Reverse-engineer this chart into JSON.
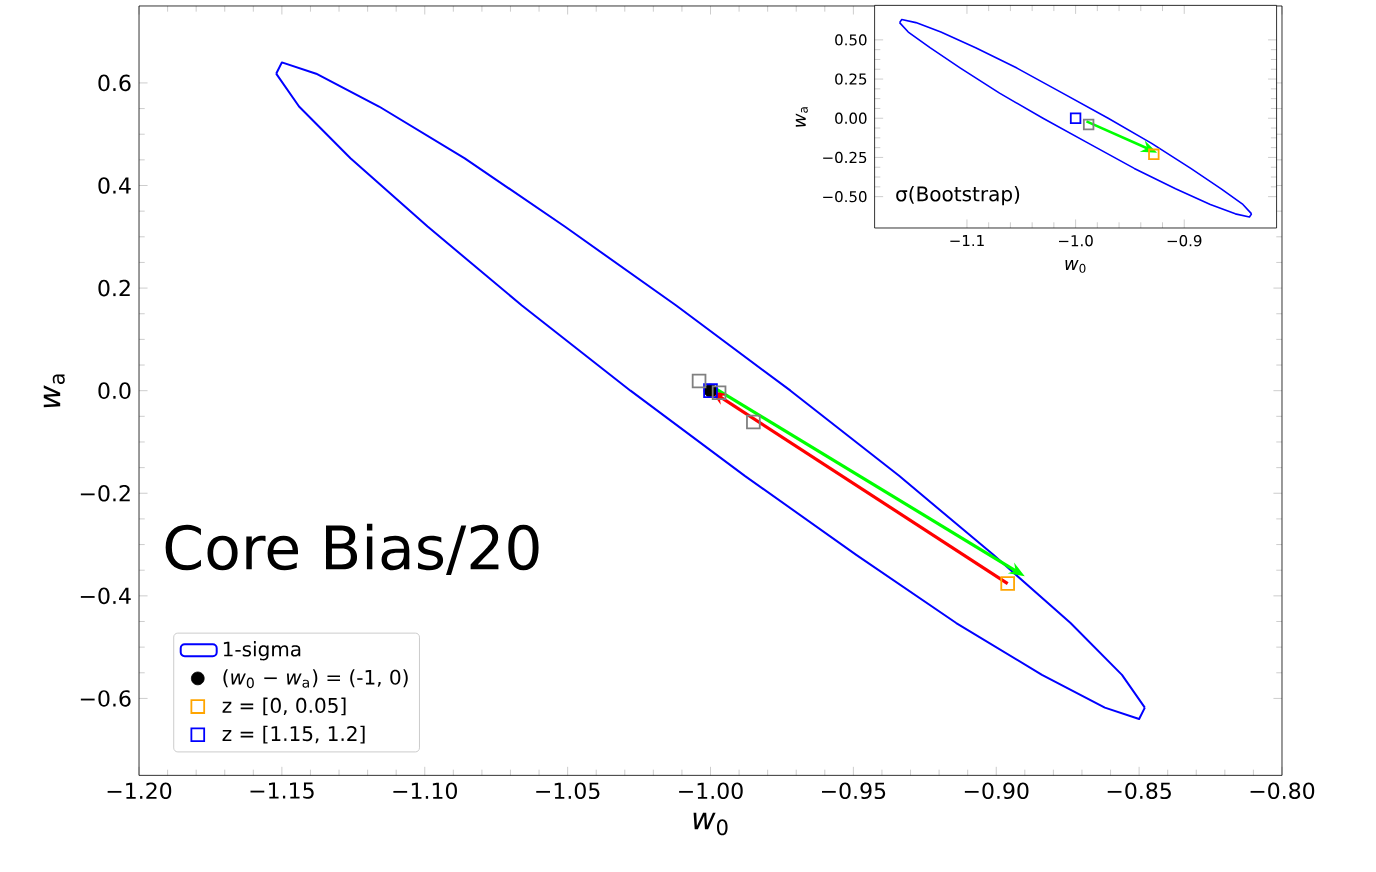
{
  "chart_data": [
    {
      "type": "scatter",
      "xlabel": "*w*$_{0}$",
      "ylabel": "*w*$_{a}$",
      "xlim": [
        -1.2,
        -0.8
      ],
      "ylim": [
        -0.75,
        0.75
      ],
      "xticks": [
        {
          "value": -1.2,
          "label": "−1.20"
        },
        {
          "value": -1.15,
          "label": "−1.15"
        },
        {
          "value": -1.1,
          "label": "−1.10"
        },
        {
          "value": -1.05,
          "label": "−1.05"
        },
        {
          "value": -1.0,
          "label": "−1.00"
        },
        {
          "value": -0.95,
          "label": "−0.95"
        },
        {
          "value": -0.9,
          "label": "−0.90"
        },
        {
          "value": -0.85,
          "label": "−0.85"
        },
        {
          "value": -0.8,
          "label": "−0.80"
        }
      ],
      "yticks": [
        {
          "value": -0.6,
          "label": "−0.6"
        },
        {
          "value": -0.4,
          "label": "−0.4"
        },
        {
          "value": -0.2,
          "label": "−0.2"
        },
        {
          "value": 0,
          "label": "0.0"
        },
        0.2,
        0.4,
        0.6
      ],
      "legend": "bottom left",
      "annotations": [
        "Core Bias/20"
      ],
      "series": [
        {
          "name": "1-sigma",
          "type": "line",
          "color": "#0000ff",
          "x": [
            -1.152,
            -1.15,
            -1.138,
            -1.116,
            -1.086,
            -1.051,
            -1.012,
            -0.972,
            -0.934,
            -0.901,
            -0.874,
            -0.856,
            -0.848
          ],
          "values": [
            0.618,
            0.64,
            0.618,
            0.554,
            0.453,
            0.32,
            0.166,
            0,
            -0.166,
            -0.32,
            -0.453,
            -0.554,
            -0.618
          ]
        },
        {
          "type": "line",
          "color": "#0000ff",
          "x": [
            -0.848,
            -0.85,
            -0.862,
            -0.884,
            -0.914,
            -0.949,
            -0.988,
            -1.028,
            -1.066,
            -1.099,
            -1.126,
            -1.144,
            -1.152
          ],
          "values": [
            -0.618,
            -0.64,
            -0.618,
            -0.554,
            -0.453,
            -0.32,
            -0.166,
            0,
            0.166,
            0.32,
            0.453,
            0.554,
            0.618
          ]
        },
        {
          "name": "(*w*$_{0}$ − *w*$_{a}$) = (-1, 0)",
          "marker": "circle",
          "color": "#000000",
          "x": [
            -1.0
          ],
          "values": [
            0.0
          ]
        },
        {
          "name": "z = [0, 0.05]",
          "marker": "square",
          "color": "#ffa500",
          "x": [
            -0.896
          ],
          "values": [
            -0.376
          ]
        },
        {
          "name": "z = [1.15, 1.2]",
          "marker": "square",
          "color": "#0000ff",
          "x": [
            -1.0
          ],
          "values": [
            0.0
          ]
        },
        {
          "marker": "square",
          "color": "#808080",
          "x": [
            -1.004,
            -0.997,
            -0.985
          ],
          "values": [
            0.019,
            -0.004,
            -0.061
          ]
        }
      ]
    },
    {
      "type": "scatter",
      "xlabel": "*w*$_{0}$",
      "ylabel": "*w*$_{a}$",
      "xlim": [
        -1.185,
        -0.815
      ],
      "ylim": [
        -0.7,
        0.72
      ],
      "xticks": [
        {
          "value": -1.1,
          "label": "−1.1"
        },
        {
          "value": -1.0,
          "label": "−1.0"
        },
        {
          "value": -0.9,
          "label": "−0.9"
        }
      ],
      "yticks": [
        {
          "value": -0.5,
          "label": "−0.50"
        },
        {
          "value": -0.25,
          "label": "−0.25"
        },
        {
          "value": 0,
          "label": "0.00"
        },
        0.25,
        {
          "value": 0.5,
          "label": "0.50"
        }
      ],
      "annotations": [
        "σ(Bootstrap)"
      ],
      "series": [
        {
          "type": "line",
          "color": "#0000ff",
          "x": [
            -1.162,
            -1.16,
            -1.147,
            -1.124,
            -1.092,
            -1.054,
            -1.012,
            -0.97,
            -0.93,
            -0.894,
            -0.866,
            -0.846,
            -0.838
          ],
          "values": [
            0.61,
            0.63,
            0.61,
            0.55,
            0.45,
            0.32,
            0.16,
            0,
            -0.16,
            -0.32,
            -0.45,
            -0.55,
            -0.61
          ]
        },
        {
          "type": "line",
          "color": "#0000ff",
          "x": [
            -0.838,
            -0.84,
            -0.853,
            -0.876,
            -0.908,
            -0.946,
            -0.988,
            -1.03,
            -1.07,
            -1.106,
            -1.134,
            -1.154,
            -1.162
          ],
          "values": [
            -0.61,
            -0.63,
            -0.61,
            -0.55,
            -0.45,
            -0.32,
            -0.16,
            0,
            0.16,
            0.32,
            0.45,
            0.55,
            0.61
          ]
        },
        {
          "marker": "square",
          "color": "#808080",
          "x": [
            -0.988
          ],
          "values": [
            -0.04
          ]
        },
        {
          "marker": "square",
          "color": "#ffa500",
          "x": [
            -0.928
          ],
          "values": [
            -0.23
          ]
        },
        {
          "marker": "square",
          "color": "#0000ff",
          "x": [
            -1.0
          ],
          "values": [
            0.0
          ]
        }
      ]
    }
  ]
}
